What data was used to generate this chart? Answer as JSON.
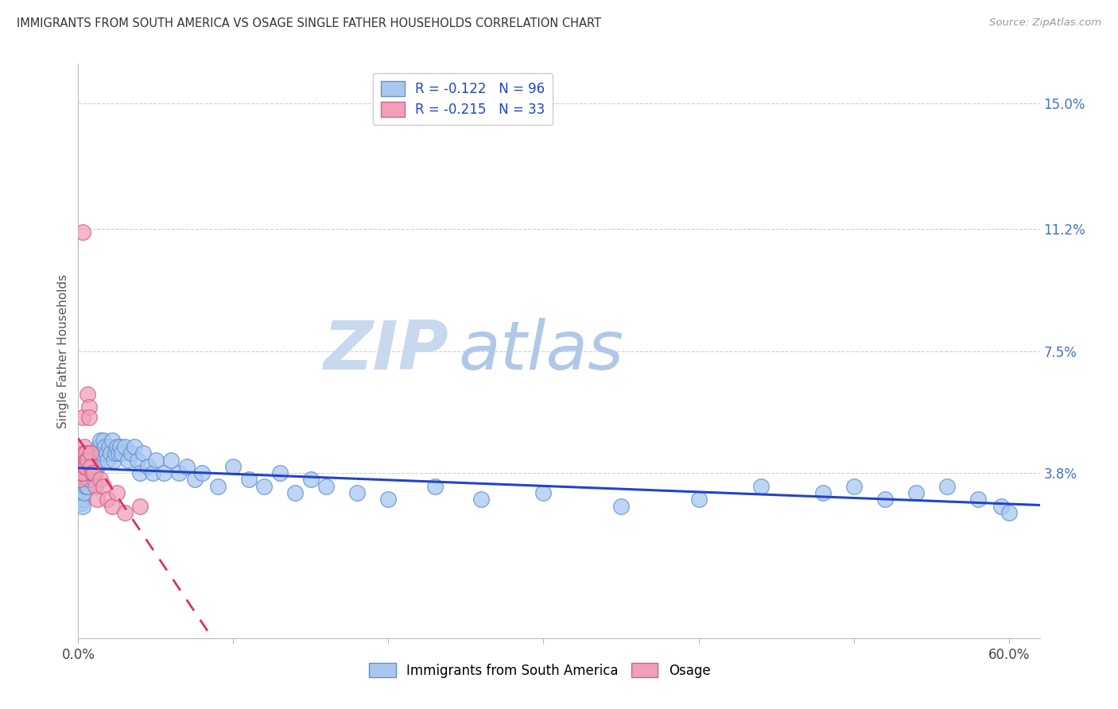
{
  "title": "IMMIGRANTS FROM SOUTH AMERICA VS OSAGE SINGLE FATHER HOUSEHOLDS CORRELATION CHART",
  "source": "Source: ZipAtlas.com",
  "ylabel": "Single Father Households",
  "y_ticks_right": [
    "15.0%",
    "11.2%",
    "7.5%",
    "3.8%"
  ],
  "y_ticks_values": [
    0.15,
    0.112,
    0.075,
    0.038
  ],
  "xlim": [
    0.0,
    0.62
  ],
  "ylim": [
    -0.012,
    0.162
  ],
  "legend1_label": "R = -0.122   N = 96",
  "legend2_label": "R = -0.215   N = 33",
  "legend_bottom1": "Immigrants from South America",
  "legend_bottom2": "Osage",
  "blue_color": "#a8c8f0",
  "pink_color": "#f0a0b8",
  "blue_line_color": "#2244cc",
  "pink_line_color": "#e03060",
  "blue_marker_edge": "#6090d0",
  "pink_marker_edge": "#d06090",
  "watermark_zip": "ZIP",
  "watermark_atlas": "atlas",
  "watermark_color_zip": "#c8d8ee",
  "watermark_color_atlas": "#b0c8e8",
  "background_color": "#ffffff",
  "grid_color": "#c8d0dc",
  "blue_x": [
    0.001,
    0.001,
    0.002,
    0.002,
    0.002,
    0.002,
    0.003,
    0.003,
    0.003,
    0.003,
    0.003,
    0.003,
    0.004,
    0.004,
    0.004,
    0.004,
    0.004,
    0.005,
    0.005,
    0.005,
    0.005,
    0.005,
    0.006,
    0.006,
    0.006,
    0.006,
    0.007,
    0.007,
    0.007,
    0.007,
    0.008,
    0.008,
    0.008,
    0.009,
    0.009,
    0.01,
    0.01,
    0.011,
    0.011,
    0.012,
    0.013,
    0.014,
    0.015,
    0.016,
    0.017,
    0.018,
    0.019,
    0.02,
    0.021,
    0.022,
    0.023,
    0.024,
    0.025,
    0.026,
    0.027,
    0.028,
    0.03,
    0.032,
    0.034,
    0.036,
    0.038,
    0.04,
    0.042,
    0.045,
    0.048,
    0.05,
    0.055,
    0.06,
    0.065,
    0.07,
    0.075,
    0.08,
    0.09,
    0.1,
    0.11,
    0.12,
    0.13,
    0.14,
    0.15,
    0.16,
    0.18,
    0.2,
    0.23,
    0.26,
    0.3,
    0.35,
    0.4,
    0.44,
    0.48,
    0.5,
    0.52,
    0.54,
    0.56,
    0.58,
    0.595,
    0.6
  ],
  "blue_y": [
    0.034,
    0.032,
    0.036,
    0.033,
    0.031,
    0.029,
    0.038,
    0.036,
    0.034,
    0.032,
    0.03,
    0.028,
    0.04,
    0.038,
    0.036,
    0.034,
    0.032,
    0.042,
    0.04,
    0.038,
    0.036,
    0.034,
    0.04,
    0.038,
    0.036,
    0.034,
    0.044,
    0.042,
    0.04,
    0.036,
    0.042,
    0.04,
    0.038,
    0.04,
    0.038,
    0.042,
    0.04,
    0.044,
    0.038,
    0.04,
    0.046,
    0.048,
    0.044,
    0.048,
    0.046,
    0.044,
    0.042,
    0.046,
    0.044,
    0.048,
    0.042,
    0.044,
    0.046,
    0.044,
    0.046,
    0.044,
    0.046,
    0.042,
    0.044,
    0.046,
    0.042,
    0.038,
    0.044,
    0.04,
    0.038,
    0.042,
    0.038,
    0.042,
    0.038,
    0.04,
    0.036,
    0.038,
    0.034,
    0.04,
    0.036,
    0.034,
    0.038,
    0.032,
    0.036,
    0.034,
    0.032,
    0.03,
    0.034,
    0.03,
    0.032,
    0.028,
    0.03,
    0.034,
    0.032,
    0.034,
    0.03,
    0.032,
    0.034,
    0.03,
    0.028,
    0.026
  ],
  "pink_x": [
    0.001,
    0.001,
    0.001,
    0.002,
    0.002,
    0.002,
    0.003,
    0.003,
    0.003,
    0.003,
    0.004,
    0.004,
    0.004,
    0.005,
    0.005,
    0.005,
    0.006,
    0.006,
    0.007,
    0.007,
    0.008,
    0.008,
    0.009,
    0.01,
    0.011,
    0.012,
    0.014,
    0.016,
    0.019,
    0.022,
    0.025,
    0.03,
    0.04
  ],
  "pink_y": [
    0.04,
    0.038,
    0.036,
    0.042,
    0.04,
    0.038,
    0.044,
    0.055,
    0.111,
    0.038,
    0.046,
    0.044,
    0.04,
    0.044,
    0.042,
    0.04,
    0.042,
    0.062,
    0.058,
    0.055,
    0.044,
    0.04,
    0.038,
    0.038,
    0.034,
    0.03,
    0.036,
    0.034,
    0.03,
    0.028,
    0.032,
    0.026,
    0.028
  ],
  "pink_line_x_start": 0.0,
  "pink_line_x_end": 0.62,
  "blue_line_x_start": 0.0,
  "blue_line_x_end": 0.62
}
